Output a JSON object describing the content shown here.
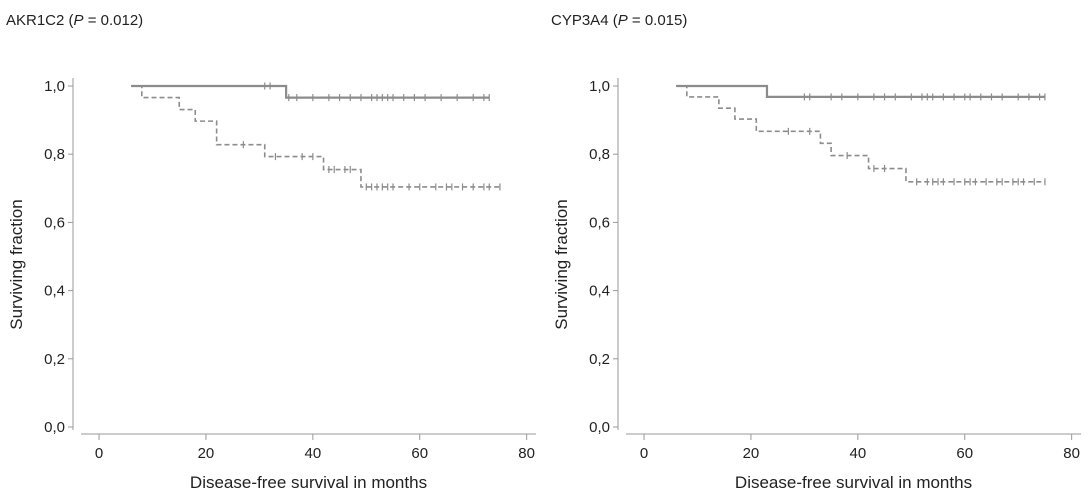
{
  "chart_data": [
    {
      "type": "line",
      "gene": "AKR1C2",
      "p_label": "P",
      "p_value": "= 0.012)",
      "title_prefix": "AKR1C2 (",
      "xlabel": "Disease-free survival in months",
      "ylabel": "Surviving fraction",
      "xlim": [
        -3,
        81
      ],
      "ylim": [
        0,
        1.0
      ],
      "xticks": [
        0,
        20,
        40,
        60,
        80
      ],
      "yticks": [
        0.0,
        0.2,
        0.4,
        0.6,
        0.8,
        1.0
      ],
      "yticklabels": [
        "0,0",
        "0,2",
        "0,4",
        "0,6",
        "0,8",
        "1,0"
      ],
      "series": [
        {
          "style": "solid",
          "color": "#8c8c8c",
          "steps": [
            [
              6,
              1.0
            ],
            [
              35,
              0.966
            ],
            [
              73,
              0.966
            ]
          ],
          "censors": [
            31,
            32,
            35.5,
            37,
            40,
            43,
            45,
            47,
            49,
            51,
            52,
            53,
            54,
            55,
            57,
            59,
            61,
            64,
            67,
            70,
            72,
            73
          ]
        },
        {
          "style": "dashed",
          "color": "#8c8c8c",
          "steps": [
            [
              6,
              1.0
            ],
            [
              8,
              0.966
            ],
            [
              15,
              0.931
            ],
            [
              18,
              0.897
            ],
            [
              22,
              0.828
            ],
            [
              30,
              0.828
            ],
            [
              31,
              0.793
            ],
            [
              42,
              0.755
            ],
            [
              49,
              0.704
            ],
            [
              75,
              0.704
            ]
          ],
          "censors": [
            27,
            33,
            38,
            40,
            43,
            44,
            46,
            47,
            50,
            51,
            52,
            53,
            54,
            55,
            58,
            60,
            63,
            65,
            66,
            68,
            70,
            72,
            73,
            75
          ]
        }
      ]
    },
    {
      "type": "line",
      "gene": "CYP3A4",
      "p_label": "P",
      "p_value": "= 0.015)",
      "title_prefix": "CYP3A4 (",
      "xlabel": "Disease-free survival in months",
      "ylabel": "Surviving fraction",
      "xlim": [
        -3,
        81
      ],
      "ylim": [
        0,
        1.0
      ],
      "xticks": [
        0,
        20,
        40,
        60,
        80
      ],
      "yticks": [
        0.0,
        0.2,
        0.4,
        0.6,
        0.8,
        1.0
      ],
      "yticklabels": [
        "0,0",
        "0,2",
        "0,4",
        "0,6",
        "0,8",
        "1,0"
      ],
      "series": [
        {
          "style": "solid",
          "color": "#8c8c8c",
          "steps": [
            [
              6,
              1.0
            ],
            [
              23,
              0.968
            ],
            [
              75,
              0.968
            ]
          ],
          "censors": [
            30,
            31,
            35,
            37,
            40,
            43,
            45,
            47,
            50,
            52,
            53,
            54,
            56,
            58,
            60,
            61,
            63,
            65,
            67,
            70,
            72,
            74,
            75
          ]
        },
        {
          "style": "dashed",
          "color": "#8c8c8c",
          "steps": [
            [
              6,
              1.0
            ],
            [
              8,
              0.968
            ],
            [
              14,
              0.935
            ],
            [
              17,
              0.903
            ],
            [
              21,
              0.867
            ],
            [
              31,
              0.867
            ],
            [
              33,
              0.832
            ],
            [
              35,
              0.796
            ],
            [
              42,
              0.758
            ],
            [
              49,
              0.719
            ],
            [
              75,
              0.719
            ]
          ],
          "censors": [
            27,
            31,
            38,
            43,
            45,
            51,
            53,
            54,
            55,
            56,
            58,
            60,
            61,
            62,
            64,
            66,
            67,
            69,
            70,
            71,
            73,
            75
          ]
        }
      ]
    }
  ]
}
